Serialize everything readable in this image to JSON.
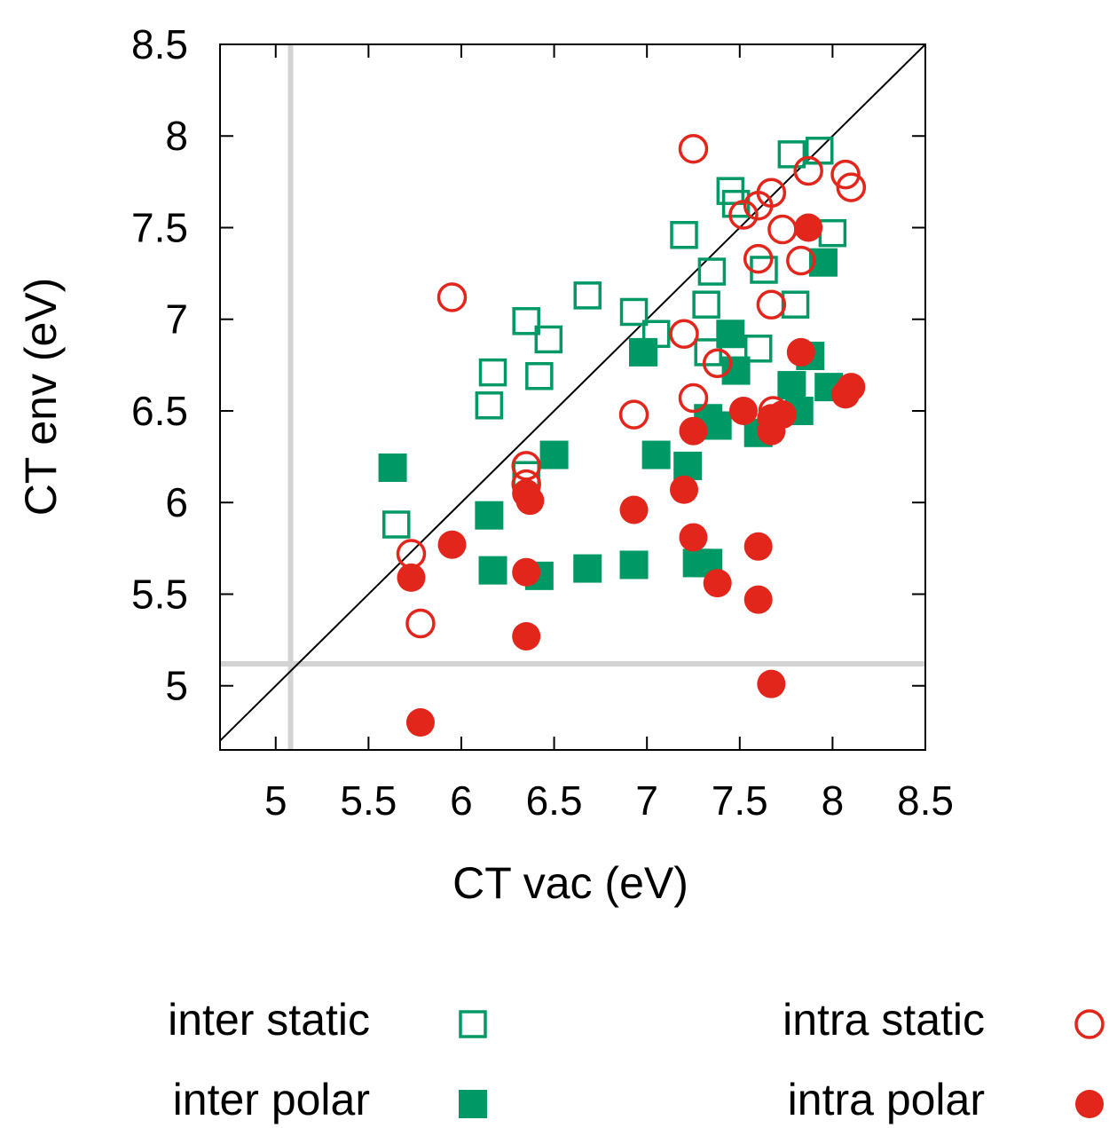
{
  "chart_data": {
    "type": "scatter",
    "xlabel": "CT vac (eV)",
    "ylabel": "CT env (eV)",
    "xlim": [
      4.7,
      8.5
    ],
    "ylim": [
      4.65,
      8.5
    ],
    "xticks": [
      5,
      5.5,
      6,
      6.5,
      7,
      7.5,
      8,
      8.5
    ],
    "yticks": [
      5,
      5.5,
      6,
      6.5,
      7,
      7.5,
      8,
      8.5
    ],
    "xtick_labels": [
      "5",
      "5.5",
      "6",
      "6.5",
      "7",
      "7.5",
      "8",
      "8.5"
    ],
    "ytick_labels": [
      "5",
      "5.5",
      "6",
      "6.5",
      "7",
      "7.5",
      "8",
      "8.5"
    ],
    "grid": false,
    "diagonal": true,
    "reference_lines": {
      "x": 5.08,
      "y": 5.12
    },
    "legend_position": "below",
    "colors": {
      "green": "#009966",
      "red": "#e2261b",
      "reference": "#d3d3d3",
      "diagonal": "#000000"
    },
    "series": [
      {
        "name": "inter static",
        "marker": "square-open",
        "color": "#009966",
        "points": [
          [
            5.65,
            5.88
          ],
          [
            6.15,
            6.53
          ],
          [
            6.17,
            6.71
          ],
          [
            6.35,
            6.99
          ],
          [
            6.42,
            6.69
          ],
          [
            6.47,
            6.89
          ],
          [
            6.35,
            6.15
          ],
          [
            6.68,
            7.13
          ],
          [
            6.93,
            7.04
          ],
          [
            7.05,
            6.92
          ],
          [
            7.2,
            7.46
          ],
          [
            7.32,
            7.08
          ],
          [
            7.35,
            7.26
          ],
          [
            7.33,
            6.82
          ],
          [
            7.45,
            7.7
          ],
          [
            7.48,
            7.63
          ],
          [
            7.6,
            6.84
          ],
          [
            7.63,
            7.27
          ],
          [
            7.78,
            7.9
          ],
          [
            7.8,
            7.08
          ],
          [
            7.93,
            7.92
          ],
          [
            8.0,
            7.47
          ]
        ]
      },
      {
        "name": "inter polar",
        "marker": "square-filled",
        "color": "#009966",
        "points": [
          [
            5.63,
            6.19
          ],
          [
            6.15,
            5.93
          ],
          [
            6.17,
            5.63
          ],
          [
            6.42,
            5.6
          ],
          [
            6.5,
            6.26
          ],
          [
            6.68,
            5.64
          ],
          [
            6.93,
            5.66
          ],
          [
            6.98,
            6.82
          ],
          [
            7.05,
            6.26
          ],
          [
            7.22,
            6.2
          ],
          [
            7.27,
            5.67
          ],
          [
            7.33,
            5.67
          ],
          [
            7.33,
            6.46
          ],
          [
            7.38,
            6.42
          ],
          [
            7.45,
            6.92
          ],
          [
            7.48,
            6.72
          ],
          [
            7.6,
            6.38
          ],
          [
            7.78,
            6.64
          ],
          [
            7.82,
            6.5
          ],
          [
            7.88,
            6.8
          ],
          [
            7.95,
            7.31
          ],
          [
            7.98,
            6.63
          ]
        ]
      },
      {
        "name": "intra static",
        "marker": "circle-open",
        "color": "#e2261b",
        "points": [
          [
            5.73,
            5.72
          ],
          [
            5.78,
            5.34
          ],
          [
            5.95,
            7.12
          ],
          [
            6.35,
            6.2
          ],
          [
            6.35,
            6.1
          ],
          [
            6.93,
            6.48
          ],
          [
            7.2,
            6.92
          ],
          [
            7.25,
            6.57
          ],
          [
            7.25,
            7.93
          ],
          [
            7.38,
            6.76
          ],
          [
            7.52,
            7.57
          ],
          [
            7.6,
            7.33
          ],
          [
            7.6,
            7.62
          ],
          [
            7.67,
            7.69
          ],
          [
            7.67,
            7.08
          ],
          [
            7.68,
            6.5
          ],
          [
            7.73,
            7.49
          ],
          [
            7.83,
            7.32
          ],
          [
            7.87,
            7.81
          ],
          [
            8.07,
            7.79
          ],
          [
            8.1,
            7.72
          ]
        ]
      },
      {
        "name": "intra polar",
        "marker": "circle-filled",
        "color": "#e2261b",
        "points": [
          [
            5.73,
            5.59
          ],
          [
            5.78,
            4.8
          ],
          [
            5.95,
            5.77
          ],
          [
            6.35,
            6.05
          ],
          [
            6.37,
            6.01
          ],
          [
            6.35,
            5.62
          ],
          [
            6.35,
            5.27
          ],
          [
            6.93,
            5.96
          ],
          [
            7.2,
            6.07
          ],
          [
            7.25,
            5.81
          ],
          [
            7.25,
            6.39
          ],
          [
            7.38,
            5.56
          ],
          [
            7.52,
            6.5
          ],
          [
            7.6,
            5.47
          ],
          [
            7.6,
            5.76
          ],
          [
            7.67,
            6.39
          ],
          [
            7.67,
            6.46
          ],
          [
            7.67,
            5.01
          ],
          [
            7.73,
            6.48
          ],
          [
            7.83,
            6.82
          ],
          [
            7.87,
            7.5
          ],
          [
            8.07,
            6.59
          ],
          [
            8.1,
            6.63
          ]
        ]
      }
    ]
  }
}
